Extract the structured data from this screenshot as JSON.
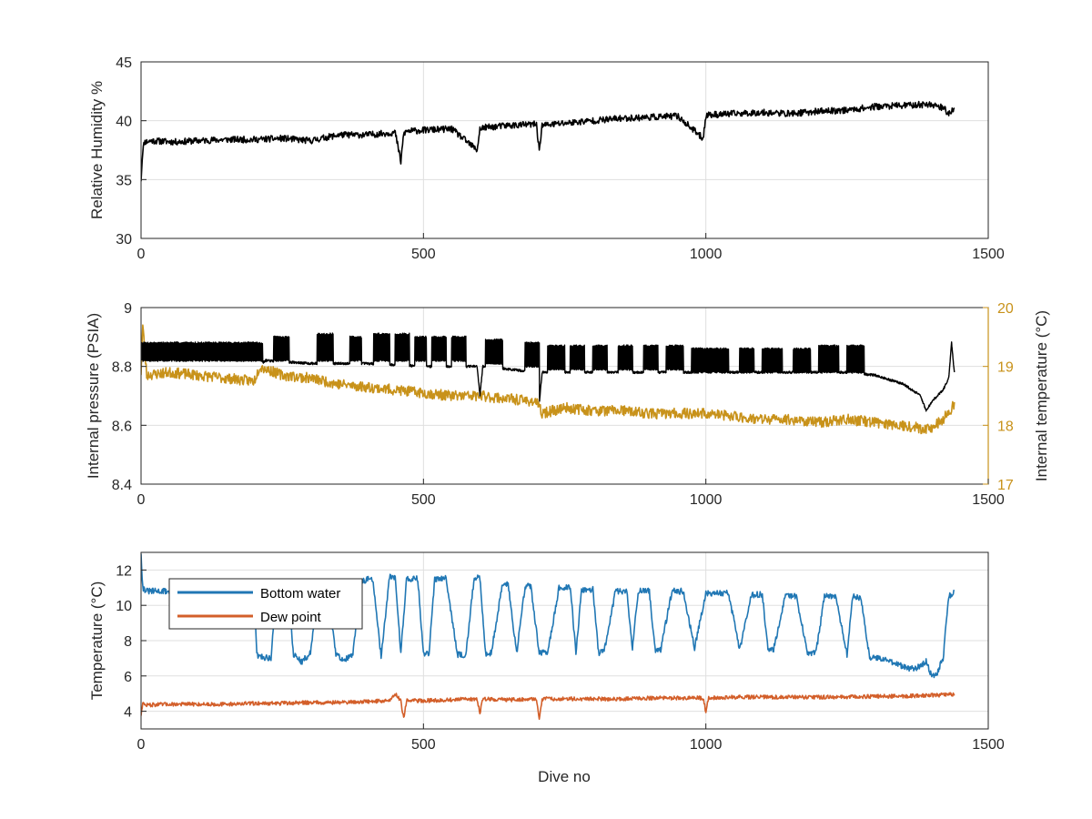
{
  "colors": {
    "humidity": "#000000",
    "pressure": "#000000",
    "internal_temp": "#c8921a",
    "bottom_water": "#2077b4",
    "dew_point": "#d35f2a",
    "grid": "#dfdfdf",
    "axis": "#262626"
  },
  "chart_data": [
    {
      "type": "line",
      "xlabel": "",
      "ylabel": "Relative Humidity %",
      "xlim": [
        0,
        1500
      ],
      "ylim": [
        30,
        45
      ],
      "xticks": [
        0,
        500,
        1000,
        1500
      ],
      "yticks": [
        30,
        35,
        40,
        45
      ],
      "grid": true,
      "series": [
        {
          "color_key": "humidity",
          "x": [
            0,
            3,
            6,
            20,
            60,
            100,
            150,
            200,
            250,
            300,
            350,
            400,
            450,
            460,
            465,
            470,
            500,
            550,
            595,
            600,
            605,
            650,
            700,
            705,
            710,
            750,
            800,
            850,
            900,
            950,
            995,
            1000,
            1005,
            1050,
            1100,
            1150,
            1200,
            1250,
            1300,
            1350,
            1400,
            1420,
            1430,
            1440
          ],
          "y": [
            35,
            37.5,
            38.2,
            38.3,
            38.2,
            38.3,
            38.4,
            38.4,
            38.5,
            38.3,
            38.8,
            38.8,
            39.0,
            36.5,
            38.9,
            39.1,
            39.2,
            39.3,
            37.5,
            39.3,
            39.4,
            39.6,
            39.7,
            37.5,
            39.6,
            39.8,
            40.0,
            40.2,
            40.3,
            40.4,
            38.5,
            40.4,
            40.5,
            40.6,
            40.7,
            40.6,
            40.8,
            40.9,
            41.2,
            41.3,
            41.4,
            41.1,
            40.6,
            41.1
          ]
        }
      ]
    },
    {
      "type": "line",
      "xlabel": "",
      "ylabel": "Internal pressure (PSIA)",
      "ylabel_right": "Internal temperature (°C)",
      "xlim": [
        0,
        1500
      ],
      "ylim": [
        8.4,
        9
      ],
      "ylim_right": [
        17,
        20
      ],
      "xticks": [
        0,
        500,
        1000,
        1500
      ],
      "yticks": [
        "8.4",
        "8.6",
        "8.8",
        "9"
      ],
      "yticks_right": [
        17,
        18,
        19,
        20
      ],
      "grid": true,
      "pressure_baseline": {
        "x": [
          0,
          5,
          20,
          100,
          200,
          210,
          220,
          300,
          400,
          500,
          595,
          600,
          605,
          700,
          705,
          710,
          800,
          900,
          1000,
          1100,
          1200,
          1250,
          1300,
          1350,
          1380,
          1390,
          1400,
          1420,
          1430,
          1435,
          1440
        ],
        "y": [
          8.82,
          8.84,
          8.84,
          8.84,
          8.84,
          8.8,
          8.82,
          8.81,
          8.81,
          8.8,
          8.8,
          8.7,
          8.8,
          8.78,
          8.67,
          8.78,
          8.78,
          8.78,
          8.78,
          8.78,
          8.78,
          8.78,
          8.77,
          8.74,
          8.7,
          8.65,
          8.68,
          8.72,
          8.76,
          8.88,
          8.78
        ]
      },
      "pressure_cycles": [
        {
          "start": 0,
          "end": 215,
          "low": 8.82,
          "high": 8.88
        },
        {
          "start": 235,
          "end": 262,
          "low": 8.82,
          "high": 8.9
        },
        {
          "start": 312,
          "end": 340,
          "low": 8.82,
          "high": 8.91
        },
        {
          "start": 370,
          "end": 390,
          "low": 8.82,
          "high": 8.9
        },
        {
          "start": 412,
          "end": 440,
          "low": 8.82,
          "high": 8.91
        },
        {
          "start": 450,
          "end": 475,
          "low": 8.82,
          "high": 8.91
        },
        {
          "start": 485,
          "end": 505,
          "low": 8.82,
          "high": 8.9
        },
        {
          "start": 515,
          "end": 540,
          "low": 8.82,
          "high": 8.9
        },
        {
          "start": 550,
          "end": 575,
          "low": 8.82,
          "high": 8.9
        },
        {
          "start": 610,
          "end": 640,
          "low": 8.81,
          "high": 8.89
        },
        {
          "start": 680,
          "end": 705,
          "low": 8.8,
          "high": 8.88
        },
        {
          "start": 720,
          "end": 750,
          "low": 8.79,
          "high": 8.87
        },
        {
          "start": 760,
          "end": 785,
          "low": 8.79,
          "high": 8.87
        },
        {
          "start": 800,
          "end": 825,
          "low": 8.79,
          "high": 8.87
        },
        {
          "start": 845,
          "end": 870,
          "low": 8.79,
          "high": 8.87
        },
        {
          "start": 890,
          "end": 915,
          "low": 8.79,
          "high": 8.87
        },
        {
          "start": 930,
          "end": 960,
          "low": 8.79,
          "high": 8.87
        },
        {
          "start": 975,
          "end": 1040,
          "low": 8.78,
          "high": 8.86
        },
        {
          "start": 1060,
          "end": 1085,
          "low": 8.78,
          "high": 8.86
        },
        {
          "start": 1100,
          "end": 1135,
          "low": 8.78,
          "high": 8.86
        },
        {
          "start": 1155,
          "end": 1185,
          "low": 8.78,
          "high": 8.86
        },
        {
          "start": 1200,
          "end": 1235,
          "low": 8.78,
          "high": 8.87
        },
        {
          "start": 1250,
          "end": 1280,
          "low": 8.78,
          "high": 8.87
        }
      ],
      "internal_temp": {
        "axis": "right",
        "x": [
          0,
          3,
          10,
          50,
          100,
          150,
          200,
          210,
          250,
          300,
          350,
          400,
          450,
          500,
          550,
          600,
          650,
          700,
          710,
          750,
          800,
          850,
          900,
          950,
          1000,
          1050,
          1100,
          1150,
          1200,
          1250,
          1300,
          1350,
          1380,
          1400,
          1420,
          1440
        ],
        "y": [
          18.9,
          19.7,
          18.85,
          18.9,
          18.85,
          18.8,
          18.75,
          19.0,
          18.85,
          18.8,
          18.7,
          18.65,
          18.6,
          18.55,
          18.5,
          18.5,
          18.45,
          18.4,
          18.2,
          18.3,
          18.25,
          18.25,
          18.2,
          18.2,
          18.2,
          18.15,
          18.1,
          18.1,
          18.05,
          18.1,
          18.05,
          18.0,
          17.95,
          17.95,
          18.1,
          18.35
        ]
      }
    },
    {
      "type": "line",
      "xlabel": "Dive no",
      "ylabel": "Temperature (°C)",
      "xlim": [
        0,
        1500
      ],
      "ylim": [
        3,
        13
      ],
      "xticks": [
        0,
        500,
        1000,
        1500
      ],
      "yticks": [
        4,
        6,
        8,
        10,
        12
      ],
      "grid": true,
      "legend_placement": "top-left",
      "series": [
        {
          "name": "Bottom water",
          "color_key": "bottom_water",
          "x": [
            0,
            3,
            10,
            50,
            100,
            150,
            200,
            205,
            210,
            230,
            240,
            260,
            270,
            285,
            300,
            315,
            330,
            345,
            360,
            375,
            390,
            410,
            425,
            440,
            450,
            460,
            470,
            490,
            500,
            510,
            520,
            540,
            560,
            575,
            590,
            600,
            610,
            620,
            640,
            650,
            665,
            680,
            690,
            705,
            720,
            740,
            760,
            770,
            780,
            800,
            810,
            820,
            840,
            860,
            870,
            880,
            900,
            910,
            920,
            940,
            960,
            980,
            1000,
            1040,
            1060,
            1080,
            1100,
            1110,
            1120,
            1140,
            1160,
            1180,
            1195,
            1210,
            1230,
            1250,
            1260,
            1275,
            1290,
            1310,
            1330,
            1350,
            1370,
            1390,
            1400,
            1410,
            1420,
            1430,
            1440
          ],
          "y": [
            13,
            11.0,
            10.8,
            10.8,
            10.8,
            10.75,
            10.7,
            7.2,
            7.1,
            7.0,
            11.0,
            11.0,
            7.2,
            6.8,
            7.3,
            11.2,
            11.2,
            7.2,
            6.9,
            7.2,
            11.4,
            11.5,
            7.1,
            11.6,
            11.6,
            7.3,
            11.5,
            11.5,
            7.2,
            7.3,
            11.5,
            11.6,
            7.2,
            7.2,
            11.6,
            11.5,
            7.3,
            7.3,
            11.2,
            11.2,
            7.3,
            11.1,
            11.1,
            7.3,
            7.3,
            11.0,
            11.0,
            7.3,
            10.9,
            10.9,
            7.3,
            7.4,
            10.8,
            10.8,
            7.5,
            10.8,
            10.8,
            7.5,
            7.5,
            10.8,
            10.8,
            7.6,
            10.7,
            10.7,
            7.5,
            10.6,
            10.6,
            7.5,
            7.5,
            10.5,
            10.5,
            7.3,
            7.3,
            10.5,
            10.5,
            7.2,
            10.5,
            10.4,
            7.0,
            7.0,
            6.8,
            6.5,
            6.4,
            6.8,
            6.0,
            6.2,
            7.0,
            10.5,
            10.7
          ]
        },
        {
          "name": "Dew point",
          "color_key": "dew_point",
          "x": [
            0,
            3,
            6,
            50,
            100,
            150,
            200,
            250,
            300,
            350,
            400,
            440,
            450,
            460,
            465,
            470,
            500,
            550,
            595,
            600,
            605,
            650,
            700,
            705,
            710,
            750,
            800,
            850,
            900,
            950,
            995,
            1000,
            1005,
            1050,
            1100,
            1150,
            1200,
            1250,
            1300,
            1350,
            1400,
            1440
          ],
          "y": [
            3.8,
            4.5,
            4.35,
            4.4,
            4.4,
            4.4,
            4.45,
            4.45,
            4.5,
            4.5,
            4.55,
            4.6,
            5.0,
            4.6,
            3.6,
            4.6,
            4.6,
            4.65,
            4.7,
            3.9,
            4.7,
            4.65,
            4.7,
            3.5,
            4.7,
            4.7,
            4.7,
            4.7,
            4.75,
            4.75,
            4.75,
            4.0,
            4.75,
            4.8,
            4.8,
            4.8,
            4.8,
            4.8,
            4.85,
            4.85,
            4.9,
            4.95
          ]
        }
      ]
    }
  ]
}
